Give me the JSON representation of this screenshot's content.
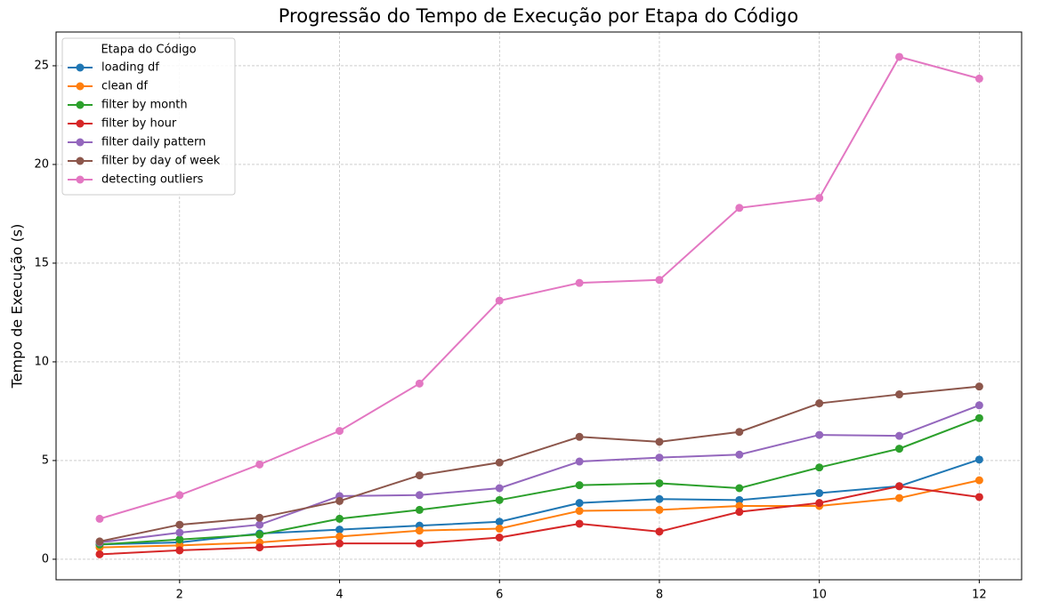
{
  "chart_data": {
    "type": "line",
    "title": "Progressão do Tempo de Execução por Etapa do Código",
    "y_label": "Tempo de Execução (s)",
    "legend_title": "Etapa do Código",
    "legend_position": "upper left",
    "grid": true,
    "x": [
      1,
      2,
      3,
      4,
      5,
      6,
      7,
      8,
      9,
      10,
      11,
      12
    ],
    "xlim": [
      0.455,
      12.53
    ],
    "xticks": [
      2,
      4,
      6,
      8,
      10,
      12
    ],
    "ylim": [
      -1.04,
      26.71
    ],
    "yticks": [
      0,
      5,
      10,
      15,
      20,
      25
    ],
    "series": [
      {
        "name": "loading df",
        "color": "#1f77b4",
        "values": [
          0.75,
          0.85,
          1.3,
          1.5,
          1.7,
          1.9,
          2.85,
          3.05,
          3.0,
          3.35,
          3.7,
          5.05
        ]
      },
      {
        "name": "clean df",
        "color": "#ff7f0e",
        "values": [
          0.6,
          0.7,
          0.85,
          1.15,
          1.45,
          1.55,
          2.45,
          2.5,
          2.7,
          2.7,
          3.1,
          4.0
        ]
      },
      {
        "name": "filter by month",
        "color": "#2ca02c",
        "values": [
          0.75,
          1.0,
          1.25,
          2.05,
          2.5,
          3.0,
          3.75,
          3.85,
          3.6,
          4.65,
          5.6,
          7.15
        ]
      },
      {
        "name": "filter by hour",
        "color": "#d62728",
        "values": [
          0.25,
          0.45,
          0.6,
          0.8,
          0.8,
          1.1,
          1.8,
          1.4,
          2.4,
          2.85,
          3.7,
          3.15
        ]
      },
      {
        "name": "filter daily pattern",
        "color": "#9467bd",
        "values": [
          0.85,
          1.35,
          1.75,
          3.2,
          3.25,
          3.6,
          4.95,
          5.15,
          5.3,
          6.3,
          6.25,
          7.8
        ]
      },
      {
        "name": "filter by day of week",
        "color": "#8c564b",
        "values": [
          0.9,
          1.75,
          2.1,
          2.95,
          4.25,
          4.9,
          6.2,
          5.95,
          6.45,
          7.9,
          8.35,
          8.75
        ]
      },
      {
        "name": "detecting outliers",
        "color": "#e377c2",
        "values": [
          2.05,
          3.25,
          4.8,
          6.5,
          8.9,
          13.1,
          14.0,
          14.15,
          17.8,
          18.3,
          25.45,
          24.35
        ]
      }
    ]
  }
}
